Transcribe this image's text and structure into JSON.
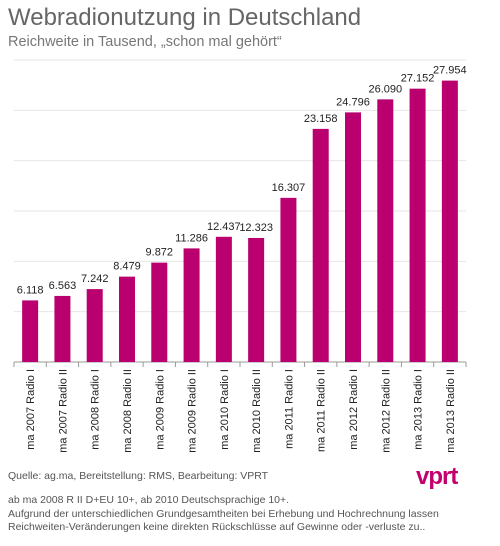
{
  "header": {
    "title": "Webradionutzung in Deutschland",
    "subtitle": "Reichweite in Tausend, „schon mal gehört“"
  },
  "chart_data": {
    "type": "bar",
    "title": "Webradionutzung in Deutschland",
    "subtitle": "Reichweite in Tausend, „schon mal gehört“",
    "categories": [
      "ma 2007 Radio I",
      "ma 2007 Radio II",
      "ma 2008 Radio I",
      "ma 2008 Radio II",
      "ma 2009 Radio I",
      "ma 2009 Radio II",
      "ma 2010 Radio I",
      "ma 2010 Radio II",
      "ma 2011 Radio I",
      "ma 2011 Radio II",
      "ma 2012 Radio I",
      "ma 2012 Radio II",
      "ma 2013 Radio I",
      "ma 2013 Radio II"
    ],
    "values": [
      6118,
      6563,
      7242,
      8479,
      9872,
      11286,
      12437,
      12323,
      16307,
      23158,
      24796,
      26090,
      27152,
      27954
    ],
    "value_labels": [
      "6.118",
      "6.563",
      "7.242",
      "8.479",
      "9.872",
      "11.286",
      "12.437",
      "12.323",
      "16.307",
      "23.158",
      "24.796",
      "26.090",
      "27.152",
      "27.954"
    ],
    "ylim": [
      0,
      30000
    ],
    "grid": true,
    "bar_color": "#b9006e"
  },
  "footer": {
    "source": "Quelle: ag.ma, Bereitstellung: RMS, Bearbeitung: VPRT",
    "note_1": "ab ma 2008 R II D+EU 10+, ab 2010 Deutschsprachige 10+.",
    "note_2": "Aufgrund der unterschiedlichen Grundgesamtheiten bei Erhebung und Hochrechnung lassen",
    "note_3": "Reichweiten-Veränderungen keine direkten Rückschlüsse auf Gewinne oder -verluste zu..",
    "logo_text": "vprt"
  }
}
